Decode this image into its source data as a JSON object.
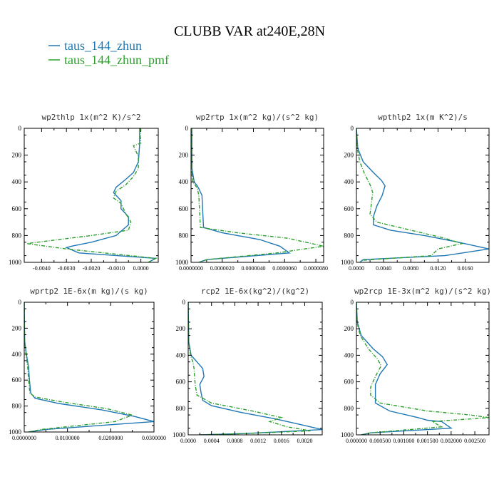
{
  "figure": {
    "title": "CLUBB VAR at240E,28N",
    "legend": [
      {
        "label": "taus_144_zhun",
        "color": "#1f77b4"
      },
      {
        "label": "taus_144_zhun_pmf",
        "color": "#2ca02c"
      }
    ]
  },
  "chart_data": [
    {
      "type": "line",
      "title": "wp2thlp   1x(m^2 K)/s^2",
      "xlim": [
        -0.0047,
        0.0007
      ],
      "ylim": [
        0,
        1000
      ],
      "y_inverted": true,
      "xticks": [
        -0.004,
        -0.003,
        -0.002,
        -0.001,
        0.0
      ],
      "xtick_labels": [
        "-0.0040",
        "-0.0030",
        "-0.0020",
        "-0.0010",
        "0.0000"
      ],
      "yticks": [
        0,
        200,
        400,
        600,
        800,
        1000
      ],
      "series": [
        {
          "name": "taus_144_zhun",
          "color": "#1f77b4",
          "dashed": false,
          "x": [
            -5e-05,
            -5e-05,
            -0.0001,
            -0.0003,
            -0.0006,
            -0.001,
            -0.0011,
            -0.0008,
            -0.0008,
            -0.0005,
            -0.0005,
            -0.001,
            -0.002,
            -0.0028,
            -0.003,
            -0.0025,
            0.0006,
            0.0003
          ],
          "y": [
            0,
            120,
            250,
            330,
            380,
            440,
            480,
            540,
            600,
            660,
            720,
            800,
            850,
            880,
            890,
            930,
            970,
            1000
          ]
        },
        {
          "name": "taus_144_zhun_pmf",
          "color": "#2ca02c",
          "dashed": true,
          "x": [
            -5e-05,
            0.0,
            -0.0003,
            -0.0001,
            -0.0001,
            -0.0003,
            -0.0006,
            -0.001,
            -0.0011,
            -0.0008,
            -0.0006,
            -0.0004,
            -0.0005,
            -0.002,
            -0.0046,
            -0.003,
            0.0006,
            0.0003
          ],
          "y": [
            0,
            110,
            130,
            210,
            300,
            360,
            420,
            470,
            520,
            560,
            640,
            700,
            760,
            800,
            860,
            900,
            970,
            1000
          ]
        }
      ]
    },
    {
      "type": "line",
      "title": "wp2rtp   1x(m^2 kg)/(s^2 kg)",
      "xlim": [
        0,
        8.5e-06
      ],
      "ylim": [
        0,
        1000
      ],
      "y_inverted": true,
      "xticks": [
        0,
        2e-06,
        4e-06,
        6e-06,
        8e-06
      ],
      "xtick_labels": [
        "0.0000000",
        "0.0000020",
        "0.0000040",
        "0.0000060",
        "0.0000080"
      ],
      "yticks": [
        0,
        200,
        400,
        600,
        800,
        1000
      ],
      "series": [
        {
          "name": "taus_144_zhun",
          "color": "#1f77b4",
          "dashed": false,
          "x": [
            5e-08,
            6e-08,
            2e-07,
            4e-07,
            5e-07,
            7e-07,
            8e-07,
            2e-06,
            4.4e-06,
            5.7e-06,
            6.3e-06,
            1e-06,
            5e-07
          ],
          "y": [
            0,
            300,
            400,
            430,
            450,
            500,
            740,
            780,
            830,
            880,
            930,
            980,
            1000
          ]
        },
        {
          "name": "taus_144_zhun_pmf",
          "color": "#2ca02c",
          "dashed": true,
          "x": [
            3e-08,
            4e-08,
            1e-07,
            3e-07,
            4e-07,
            5e-07,
            6e-07,
            3e-06,
            6.2e-06,
            8.5e-06,
            5.5e-06,
            1e-06,
            5e-07
          ],
          "y": [
            0,
            300,
            400,
            430,
            450,
            500,
            740,
            780,
            820,
            880,
            930,
            980,
            1000
          ]
        }
      ]
    },
    {
      "type": "line",
      "title": "wpthlp2   1x(m K^2)/s",
      "xlim": [
        0,
        0.0195
      ],
      "ylim": [
        0,
        1000
      ],
      "y_inverted": true,
      "xticks": [
        0,
        0.004,
        0.008,
        0.012,
        0.016
      ],
      "xtick_labels": [
        "0.0000",
        "0.0040",
        "0.0080",
        "0.0120",
        "0.0160"
      ],
      "yticks": [
        0,
        200,
        400,
        600,
        800,
        1000
      ],
      "series": [
        {
          "name": "taus_144_zhun",
          "color": "#1f77b4",
          "dashed": false,
          "x": [
            0.0,
            0.0002,
            0.001,
            0.0025,
            0.0037,
            0.0042,
            0.0038,
            0.003,
            0.0025,
            0.0025,
            0.005,
            0.01,
            0.015,
            0.0195,
            0.013,
            0.001,
            0.0005
          ],
          "y": [
            0,
            150,
            250,
            330,
            390,
            430,
            500,
            580,
            660,
            720,
            760,
            800,
            850,
            900,
            950,
            980,
            1000
          ]
        },
        {
          "name": "taus_144_zhun_pmf",
          "color": "#2ca02c",
          "dashed": true,
          "x": [
            0.0,
            0.0001,
            0.0005,
            0.0012,
            0.002,
            0.0024,
            0.0022,
            0.002,
            0.003,
            0.008,
            0.013,
            0.0155,
            0.012,
            0.011,
            0.0008,
            0.0005
          ],
          "y": [
            0,
            150,
            250,
            340,
            420,
            480,
            560,
            640,
            700,
            760,
            820,
            860,
            900,
            950,
            985,
            1000
          ]
        }
      ]
    },
    {
      "type": "line",
      "title": "wprtp2   1E-6x(m kg)/(s kg)",
      "xlim": [
        0,
        0.03
      ],
      "ylim": [
        0,
        1000
      ],
      "y_inverted": true,
      "xticks": [
        0,
        0.01,
        0.02,
        0.03
      ],
      "xtick_labels": [
        "0.0000000",
        "0.0100000",
        "0.0200000",
        "0.0300000"
      ],
      "yticks": [
        0,
        200,
        400,
        600,
        800,
        1000
      ],
      "series": [
        {
          "name": "taus_144_zhun",
          "color": "#1f77b4",
          "dashed": false,
          "x": [
            0.0,
            0.0001,
            0.0005,
            0.001,
            0.0012,
            0.0015,
            0.0025,
            0.008,
            0.018,
            0.0255,
            0.03,
            0.005,
            0.001
          ],
          "y": [
            0,
            300,
            400,
            500,
            600,
            700,
            740,
            780,
            830,
            880,
            920,
            980,
            1000
          ]
        },
        {
          "name": "taus_144_zhun_pmf",
          "color": "#2ca02c",
          "dashed": true,
          "x": [
            0.0,
            0.0001,
            0.0004,
            0.0008,
            0.001,
            0.0013,
            0.0025,
            0.009,
            0.019,
            0.025,
            0.021,
            0.004,
            0.001
          ],
          "y": [
            0,
            300,
            400,
            500,
            600,
            700,
            730,
            770,
            820,
            870,
            920,
            980,
            1000
          ]
        }
      ]
    },
    {
      "type": "line",
      "title": "rcp2   1E-6x(kg^2)/(kg^2)",
      "xlim": [
        0,
        0.0023
      ],
      "ylim": [
        0,
        1000
      ],
      "y_inverted": true,
      "xticks": [
        0,
        0.0004,
        0.0008,
        0.0012,
        0.0016,
        0.002
      ],
      "xtick_labels": [
        "0.0000",
        "0.0004",
        "0.0008",
        "0.0012",
        "0.0016",
        "0.0020"
      ],
      "yticks": [
        0,
        200,
        400,
        600,
        800,
        1000
      ],
      "series": [
        {
          "name": "taus_144_zhun",
          "color": "#1f77b4",
          "dashed": false,
          "x": [
            0.0,
            1e-05,
            5e-05,
            0.00015,
            0.00025,
            0.00027,
            0.0002,
            0.00022,
            0.00025,
            0.0004,
            0.0009,
            0.0015,
            0.0019,
            0.0023,
            0.001,
            0.0002
          ],
          "y": [
            0,
            300,
            400,
            450,
            500,
            560,
            620,
            680,
            740,
            780,
            830,
            880,
            920,
            960,
            990,
            1000
          ]
        },
        {
          "name": "taus_144_zhun_pmf",
          "color": "#2ca02c",
          "dashed": true,
          "x": [
            0.0,
            1e-05,
            4e-05,
            8e-05,
            0.0001,
            0.00011,
            0.00012,
            0.00015,
            0.0004,
            0.0011,
            0.0016,
            0.0014,
            0.0017,
            0.0021,
            0.001,
            0.0002
          ],
          "y": [
            0,
            300,
            400,
            450,
            500,
            560,
            620,
            700,
            760,
            820,
            870,
            900,
            940,
            970,
            990,
            1000
          ]
        }
      ]
    },
    {
      "type": "line",
      "title": "wp2rcp   1E-3x(m^2 kg)/(s^2 kg)",
      "xlim": [
        0,
        0.0028
      ],
      "ylim": [
        0,
        1000
      ],
      "y_inverted": true,
      "xticks": [
        0,
        0.0005,
        0.001,
        0.0015,
        0.002,
        0.0025
      ],
      "xtick_labels": [
        "0.000000",
        "0.000500",
        "0.001000",
        "0.001500",
        "0.002000",
        "0.002500"
      ],
      "yticks": [
        0,
        200,
        400,
        600,
        800,
        1000
      ],
      "series": [
        {
          "name": "taus_144_zhun",
          "color": "#1f77b4",
          "dashed": false,
          "x": [
            0.0,
            2e-05,
            0.0001,
            0.00035,
            0.00055,
            0.00065,
            0.0005,
            0.0004,
            0.0004,
            0.0004,
            0.0007,
            0.0013,
            0.0015,
            0.0018,
            0.002,
            0.0003,
            0.0001
          ],
          "y": [
            0,
            150,
            250,
            350,
            410,
            470,
            540,
            620,
            700,
            760,
            820,
            870,
            890,
            900,
            950,
            985,
            1000
          ]
        },
        {
          "name": "taus_144_zhun_pmf",
          "color": "#2ca02c",
          "dashed": true,
          "x": [
            0.0,
            1e-05,
            8e-05,
            0.00025,
            0.00045,
            0.00052,
            0.0004,
            0.0003,
            0.0003,
            0.0005,
            0.0015,
            0.0024,
            0.0028,
            0.0016,
            0.0018,
            0.0003,
            0.0001
          ],
          "y": [
            0,
            150,
            250,
            350,
            430,
            480,
            560,
            640,
            700,
            760,
            820,
            850,
            870,
            900,
            940,
            985,
            1000
          ]
        }
      ]
    }
  ]
}
